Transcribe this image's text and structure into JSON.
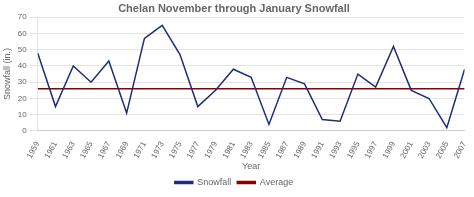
{
  "chart_data": {
    "type": "line",
    "title": "Chelan November through January Snowfall",
    "xlabel": "Year",
    "ylabel": "Snowfall (in.)",
    "x": [
      1959,
      1961,
      1963,
      1965,
      1967,
      1969,
      1971,
      1973,
      1975,
      1977,
      1979,
      1981,
      1983,
      1985,
      1987,
      1989,
      1991,
      1993,
      1995,
      1997,
      1999,
      2001,
      2003,
      2005,
      2007
    ],
    "series": [
      {
        "name": "Snowfall",
        "color": "#1f2d7a",
        "values": [
          48,
          15,
          40,
          30,
          43,
          11,
          57,
          65,
          47,
          15,
          25,
          38,
          33,
          4,
          33,
          29,
          7,
          6,
          35,
          27,
          52,
          25,
          20,
          2,
          38
        ]
      },
      {
        "name": "Average",
        "color": "#8b0000",
        "values": [
          26,
          26,
          26,
          26,
          26,
          26,
          26,
          26,
          26,
          26,
          26,
          26,
          26,
          26,
          26,
          26,
          26,
          26,
          26,
          26,
          26,
          26,
          26,
          26,
          26
        ]
      }
    ],
    "xlim": [
      1959,
      2007
    ],
    "xticks": [
      1959,
      1961,
      1963,
      1965,
      1967,
      1969,
      1971,
      1973,
      1975,
      1977,
      1979,
      1981,
      1983,
      1985,
      1987,
      1989,
      1991,
      1993,
      1995,
      1997,
      1999,
      2001,
      2003,
      2005,
      2007
    ],
    "ylim": [
      0,
      70
    ],
    "yticks": [
      0,
      10,
      20,
      30,
      40,
      50,
      60,
      70
    ],
    "grid": true,
    "legend": "bottom"
  }
}
